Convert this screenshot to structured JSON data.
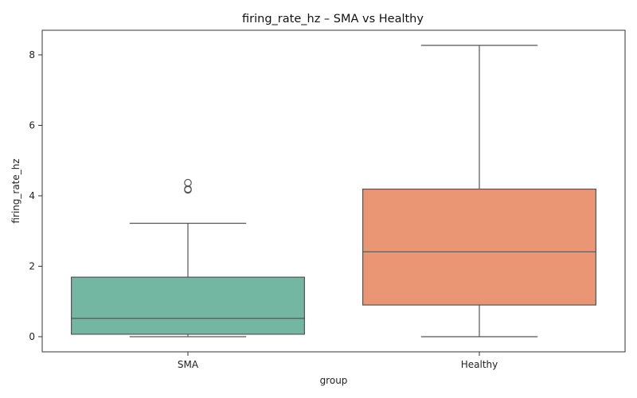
{
  "chart_data": {
    "type": "box",
    "title": "firing_rate_hz – SMA vs Healthy",
    "xlabel": "group",
    "ylabel": "firing_rate_hz",
    "categories": [
      "SMA",
      "Healthy"
    ],
    "ylim": [
      -0.43,
      8.7
    ],
    "yticks": [
      0,
      2,
      4,
      6,
      8
    ],
    "grid": false,
    "legend": "none",
    "boxes": [
      {
        "category": "SMA",
        "whisker_low": 0.0,
        "q1": 0.07,
        "median": 0.52,
        "q3": 1.69,
        "whisker_high": 3.22,
        "outliers": [
          4.17,
          4.19,
          4.37
        ],
        "color": "#73b6a1"
      },
      {
        "category": "Healthy",
        "whisker_low": 0.0,
        "q1": 0.9,
        "median": 2.41,
        "q3": 4.19,
        "whisker_high": 8.27,
        "outliers": [],
        "color": "#ea9674"
      }
    ],
    "line_color": "#555555"
  }
}
